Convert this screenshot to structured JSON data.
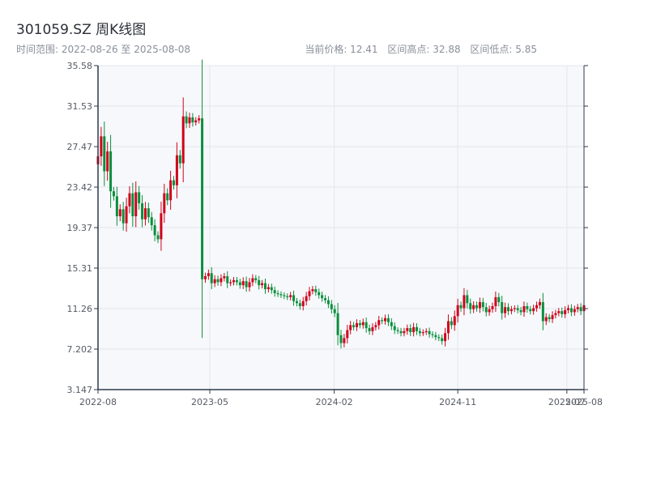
{
  "header": {
    "title": "301059.SZ 周K线图",
    "date_range": "时间范围: 2022-08-26 至 2025-08-08",
    "current_price": "当前价格: 12.41",
    "high": "区间高点: 32.88",
    "low": "区间低点: 5.85"
  },
  "colors": {
    "up": "#d0021b",
    "down": "#0a8f3c",
    "axis": "#2f3a4a",
    "grid": "#e3e6eb",
    "plot_bg": "#f6f8fb"
  },
  "chart_data": {
    "type": "candlestick",
    "title": "301059.SZ 周K线图",
    "ylim": [
      3.147,
      35.58
    ],
    "y_ticks": [
      "35.58",
      "31.53",
      "27.47",
      "23.42",
      "19.37",
      "15.31",
      "11.26",
      "7.202",
      "3.147"
    ],
    "x_ticks": [
      "2022-08",
      "2023-05",
      "2024-02",
      "2024-11",
      "2025-07",
      "2025-08"
    ],
    "x_range": [
      "2022-08-26",
      "2025-08-08"
    ],
    "grid": true,
    "weeks": [
      "2022-08-26",
      "2022-09-02",
      "2022-09-09",
      "2022-09-16",
      "2022-09-23",
      "2022-09-30",
      "2022-10-07",
      "2022-10-14",
      "2022-10-21",
      "2022-10-28",
      "2022-11-04",
      "2022-11-11",
      "2022-11-18",
      "2022-11-25",
      "2022-12-02",
      "2022-12-09",
      "2022-12-16",
      "2022-12-23",
      "2022-12-30",
      "2023-01-06",
      "2023-01-13",
      "2023-01-20",
      "2023-01-27",
      "2023-02-03",
      "2023-02-10",
      "2023-02-17",
      "2023-02-24",
      "2023-03-03",
      "2023-03-10",
      "2023-03-17",
      "2023-03-24",
      "2023-03-31",
      "2023-04-07",
      "2023-04-14",
      "2023-04-21",
      "2023-04-28",
      "2023-05-05",
      "2023-05-12",
      "2023-05-19",
      "2023-05-26",
      "2023-06-02",
      "2023-06-09",
      "2023-06-16",
      "2023-06-23",
      "2023-06-30",
      "2023-07-07",
      "2023-07-14",
      "2023-07-21",
      "2023-07-28",
      "2023-08-04",
      "2023-08-11",
      "2023-08-18",
      "2023-08-25",
      "2023-09-01",
      "2023-09-08",
      "2023-09-15",
      "2023-09-22",
      "2023-09-29",
      "2023-10-06",
      "2023-10-13",
      "2023-10-20",
      "2023-10-27",
      "2023-11-03",
      "2023-11-10",
      "2023-11-17",
      "2023-11-24",
      "2023-12-01",
      "2023-12-08",
      "2023-12-15",
      "2023-12-22",
      "2023-12-29",
      "2024-01-05",
      "2024-01-12",
      "2024-01-19",
      "2024-01-26",
      "2024-02-02",
      "2024-02-09",
      "2024-02-16",
      "2024-02-23",
      "2024-03-01",
      "2024-03-08",
      "2024-03-15",
      "2024-03-22",
      "2024-03-29",
      "2024-04-05",
      "2024-04-12",
      "2024-04-19",
      "2024-04-26",
      "2024-05-03",
      "2024-05-10",
      "2024-05-17",
      "2024-05-24",
      "2024-05-31",
      "2024-06-07",
      "2024-06-14",
      "2024-06-21",
      "2024-06-28",
      "2024-07-05",
      "2024-07-12",
      "2024-07-19",
      "2024-07-26",
      "2024-08-02",
      "2024-08-09",
      "2024-08-16",
      "2024-08-23",
      "2024-08-30",
      "2024-09-06",
      "2024-09-13",
      "2024-09-20",
      "2024-09-27",
      "2024-10-04",
      "2024-10-11",
      "2024-10-18",
      "2024-10-25",
      "2024-11-01",
      "2024-11-08",
      "2024-11-15",
      "2024-11-22",
      "2024-11-29",
      "2024-12-06",
      "2024-12-13",
      "2024-12-20",
      "2024-12-27",
      "2025-01-03",
      "2025-01-10",
      "2025-01-17",
      "2025-01-24",
      "2025-01-31",
      "2025-02-07",
      "2025-02-14",
      "2025-02-21",
      "2025-02-28",
      "2025-03-07",
      "2025-03-14",
      "2025-03-21",
      "2025-03-28",
      "2025-04-04",
      "2025-04-11",
      "2025-04-18",
      "2025-04-25",
      "2025-05-02",
      "2025-05-09",
      "2025-05-16",
      "2025-05-23",
      "2025-05-30",
      "2025-06-06",
      "2025-06-13",
      "2025-06-20",
      "2025-06-27",
      "2025-07-04",
      "2025-07-11",
      "2025-07-18",
      "2025-07-25",
      "2025-08-01",
      "2025-08-08"
    ],
    "closes": [
      26.5,
      28.5,
      25.0,
      27.0,
      23.0,
      22.5,
      20.5,
      21.2,
      19.8,
      21.5,
      22.8,
      20.5,
      22.9,
      21.8,
      20.2,
      21.3,
      20.4,
      19.6,
      18.6,
      18.2,
      20.8,
      22.8,
      22.1,
      24.1,
      23.6,
      26.6,
      25.8,
      30.5,
      29.8,
      30.4,
      29.9,
      30.1,
      30.3,
      14.2,
      14.5,
      14.8,
      13.8,
      14.2,
      13.9,
      14.3,
      14.5,
      13.8,
      13.9,
      14.1,
      13.9,
      13.6,
      14.0,
      13.4,
      13.9,
      14.3,
      14.1,
      13.6,
      13.8,
      13.2,
      13.4,
      13.1,
      12.8,
      12.7,
      12.6,
      12.5,
      12.4,
      12.6,
      12.0,
      11.8,
      11.5,
      12.0,
      12.5,
      13.0,
      13.2,
      12.9,
      12.6,
      12.3,
      12.1,
      11.7,
      11.2,
      10.8,
      8.6,
      7.8,
      8.3,
      9.1,
      9.6,
      9.4,
      9.8,
      9.6,
      9.9,
      9.3,
      9.0,
      9.4,
      9.6,
      10.1,
      10.0,
      10.3,
      9.9,
      9.5,
      9.1,
      9.0,
      8.8,
      9.0,
      9.3,
      8.9,
      9.4,
      9.0,
      8.8,
      8.9,
      9.0,
      8.7,
      8.6,
      8.4,
      8.3,
      8.0,
      8.8,
      10.0,
      9.6,
      10.5,
      11.6,
      11.3,
      12.6,
      11.8,
      11.2,
      11.6,
      11.3,
      11.9,
      11.4,
      10.9,
      11.2,
      11.5,
      12.4,
      11.9,
      10.8,
      11.4,
      11.0,
      11.2,
      11.3,
      11.1,
      10.9,
      11.5,
      11.2,
      11.0,
      11.3,
      11.6,
      11.9,
      10.0,
      10.4,
      10.2,
      10.6,
      10.8,
      11.0,
      10.7,
      11.1,
      11.3,
      10.9,
      11.2,
      11.4,
      11.0,
      11.6,
      11.9,
      12.0,
      12.2,
      12.41
    ]
  }
}
